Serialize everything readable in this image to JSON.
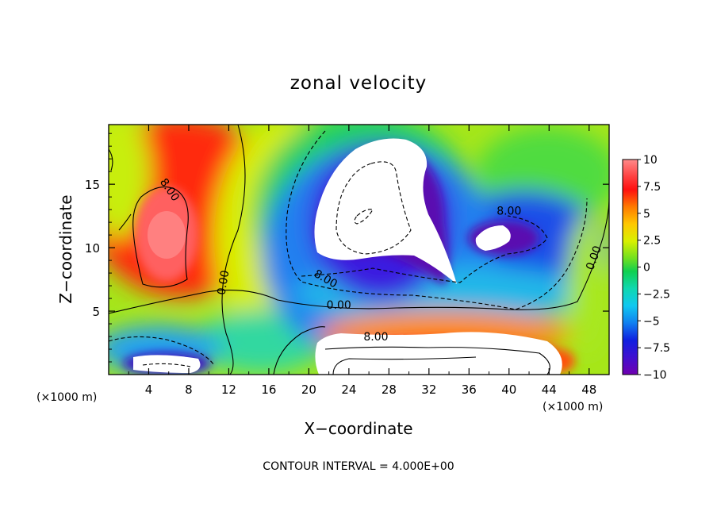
{
  "chart_data": {
    "type": "heatmap",
    "title": "zonal velocity",
    "xlabel": "X−coordinate",
    "ylabel": "Z−coordinate",
    "x_unit_left": "(×1000 m)",
    "x_unit_right": "(×1000 m)",
    "footer": "CONTOUR INTERVAL = 4.000E+00",
    "xlim": [
      0,
      50
    ],
    "ylim": [
      0,
      19.7
    ],
    "x_ticks": [
      4,
      8,
      12,
      16,
      20,
      24,
      28,
      32,
      36,
      40,
      44,
      48
    ],
    "y_ticks": [
      5,
      10,
      15
    ],
    "colorbar": {
      "range": [
        -10,
        10
      ],
      "tick_labels": [
        "10",
        "7.5",
        "5",
        "2.5",
        "0",
        "−2.5",
        "−5",
        "−7.5",
        "−10"
      ],
      "tick_values": [
        10,
        7.5,
        5,
        2.5,
        0,
        -2.5,
        -5,
        -7.5,
        -10
      ]
    },
    "contour_labels": [
      {
        "text": "8.00",
        "x": 5.8,
        "y": 14.4,
        "angle": 55
      },
      {
        "text": "0.00",
        "x": 11.8,
        "y": 7.2,
        "angle": -80
      },
      {
        "text": "8.00",
        "x": 21.5,
        "y": 7.3,
        "angle": 30
      },
      {
        "text": "0.00",
        "x": 23.0,
        "y": 5.2,
        "angle": 0
      },
      {
        "text": "8.00",
        "x": 26.7,
        "y": 2.7,
        "angle": 0
      },
      {
        "text": "8.00",
        "x": 40.0,
        "y": 12.6,
        "angle": 0
      },
      {
        "text": "0.00",
        "x": 48.8,
        "y": 9.1,
        "angle": -70
      }
    ],
    "features": [
      {
        "kind": "positive-max",
        "x": 6,
        "y": 11.5,
        "value": 11
      },
      {
        "kind": "positive",
        "x": 8,
        "y": 16,
        "value": 7
      },
      {
        "kind": "negative-min",
        "x": 28,
        "y": 13,
        "value": -13
      },
      {
        "kind": "negative-min",
        "x": 39.5,
        "y": 10.6,
        "value": -11
      },
      {
        "kind": "positive-max",
        "x": 34,
        "y": 1.5,
        "value": 12
      },
      {
        "kind": "negative-min",
        "x": 5.5,
        "y": 1.0,
        "value": -11
      }
    ]
  }
}
